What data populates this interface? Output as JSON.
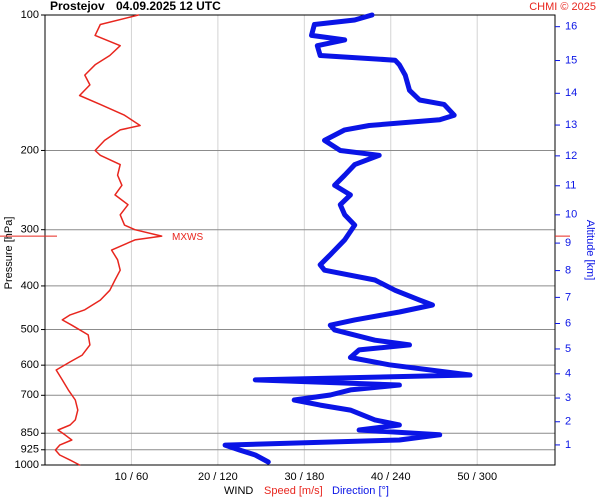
{
  "chart_data": {
    "type": "profile",
    "title": "Prostejov",
    "subtitle": "04.09.2025 12 UTC",
    "credit": "CHMI © 2025",
    "ylabel": "Pressure [hPa]",
    "y2label": "Altitude [km]",
    "legend_title": "WIND",
    "log_y": true,
    "grid": true,
    "ylim": [
      1000,
      100
    ],
    "yticks": [
      100,
      200,
      300,
      400,
      500,
      600,
      700,
      850,
      925,
      1000
    ],
    "xlim": [
      0,
      59
    ],
    "x2lim": [
      0,
      354
    ],
    "xticks": [
      {
        "value": 10,
        "label": "10 / 60"
      },
      {
        "value": 20,
        "label": "20 / 120"
      },
      {
        "value": 30,
        "label": "30 / 180"
      },
      {
        "value": 40,
        "label": "40 / 240"
      },
      {
        "value": 50,
        "label": "50 / 300"
      }
    ],
    "y2ticks": [
      1,
      2,
      3,
      4,
      5,
      6,
      7,
      8,
      9,
      10,
      11,
      12,
      13,
      14,
      15,
      16
    ],
    "annotation": {
      "text": "MXWS",
      "pressure": 310,
      "color": "#e8261e"
    },
    "series": [
      {
        "name": "Speed [m/s]",
        "color": "#e8261e",
        "axis": "x",
        "y": [
          100,
          105,
          111,
          117,
          123,
          129,
          136,
          143,
          151,
          158,
          167,
          176,
          180,
          190,
          200,
          205,
          215,
          227,
          239,
          251,
          264,
          278,
          293,
          300,
          310,
          316,
          333,
          350,
          369,
          388,
          409,
          430,
          452,
          464,
          476,
          489,
          514,
          541,
          570,
          590,
          615,
          647,
          681,
          717,
          755,
          794,
          815,
          836,
          857,
          880,
          903,
          926,
          950,
          975,
          1000
        ],
        "values": [
          10.8,
          6.4,
          5.8,
          8.7,
          7.5,
          5.8,
          4.6,
          5.2,
          4.0,
          6.4,
          9.2,
          11.0,
          8.7,
          6.9,
          5.8,
          6.4,
          8.7,
          8.4,
          8.9,
          8.1,
          9.6,
          8.7,
          9.2,
          10.4,
          13.5,
          10.4,
          7.7,
          8.4,
          8.7,
          8.1,
          7.5,
          6.4,
          4.6,
          2.9,
          2.0,
          3.1,
          5.0,
          5.2,
          4.3,
          2.9,
          1.3,
          2.0,
          2.7,
          3.5,
          3.8,
          3.5,
          2.9,
          1.5,
          2.3,
          3.1,
          1.7,
          1.2,
          1.7,
          2.9,
          4.0
        ]
      },
      {
        "name": "Direction [°]",
        "color": "#0a14e6",
        "axis": "x2",
        "y": [
          100,
          102.6,
          105,
          111,
          113.6,
          117,
          123,
          126,
          129,
          136,
          147,
          154.5,
          158,
          167,
          171,
          176,
          180,
          190,
          200,
          205,
          215,
          227,
          239,
          251,
          264,
          278,
          293,
          316,
          341,
          359,
          369,
          388,
          409,
          430,
          441,
          457,
          476,
          489,
          501,
          528,
          541,
          555,
          577,
          599,
          631,
          647,
          664,
          681,
          699,
          717,
          736,
          755,
          794,
          815,
          836,
          857,
          880,
          903,
          926,
          950,
          985
        ],
        "values": [
          227,
          215,
          187,
          185,
          208,
          189,
          191,
          243,
          246,
          250,
          253,
          260,
          277,
          284,
          274,
          225,
          208,
          194,
          205,
          232,
          215,
          208,
          201,
          212,
          205,
          208,
          215,
          208,
          198,
          191,
          194,
          229,
          243,
          260,
          269,
          246,
          215,
          198,
          201,
          229,
          253,
          218,
          212,
          239,
          295,
          146,
          246,
          212,
          198,
          173,
          191,
          212,
          229,
          246,
          218,
          274,
          246,
          125,
          135,
          146,
          155
        ]
      }
    ]
  }
}
